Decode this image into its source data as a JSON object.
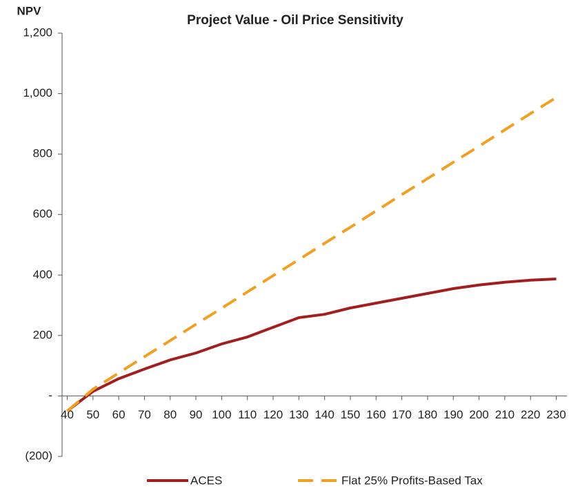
{
  "chart_data": {
    "type": "line",
    "title": "Project Value - Oil Price Sensitivity",
    "ylabel": "NPV",
    "x": [
      40,
      50,
      60,
      70,
      80,
      90,
      100,
      110,
      120,
      130,
      140,
      150,
      160,
      170,
      180,
      190,
      200,
      210,
      220,
      230
    ],
    "xlim": [
      38,
      232
    ],
    "xticks": [
      40,
      50,
      60,
      70,
      80,
      90,
      100,
      110,
      120,
      130,
      140,
      150,
      160,
      170,
      180,
      190,
      200,
      210,
      220,
      230
    ],
    "ylim": [
      -200,
      1200
    ],
    "yticks": [
      {
        "value": -200,
        "label": "(200)"
      },
      {
        "value": 0,
        "label": "-"
      },
      200,
      400,
      600,
      800,
      {
        "value": 1000,
        "label": "1,000"
      },
      {
        "value": 1200,
        "label": "1,200"
      }
    ],
    "grid": false,
    "legend": "bottom",
    "series": [
      {
        "name": "ACES",
        "color": "#a31f1f",
        "dash": false,
        "values": [
          -50,
          15,
          57,
          89,
          119,
          142,
          172,
          195,
          227,
          259,
          270,
          291,
          307,
          323,
          339,
          355,
          367,
          376,
          383,
          387
        ]
      },
      {
        "name": "Flat 25% Profits-Based Tax",
        "color": "#f0a023",
        "dash": true,
        "values": [
          -50,
          22,
          76,
          130,
          183,
          237,
          290,
          344,
          398,
          451,
          505,
          558,
          612,
          666,
          719,
          773,
          826,
          880,
          934,
          987
        ]
      }
    ]
  }
}
